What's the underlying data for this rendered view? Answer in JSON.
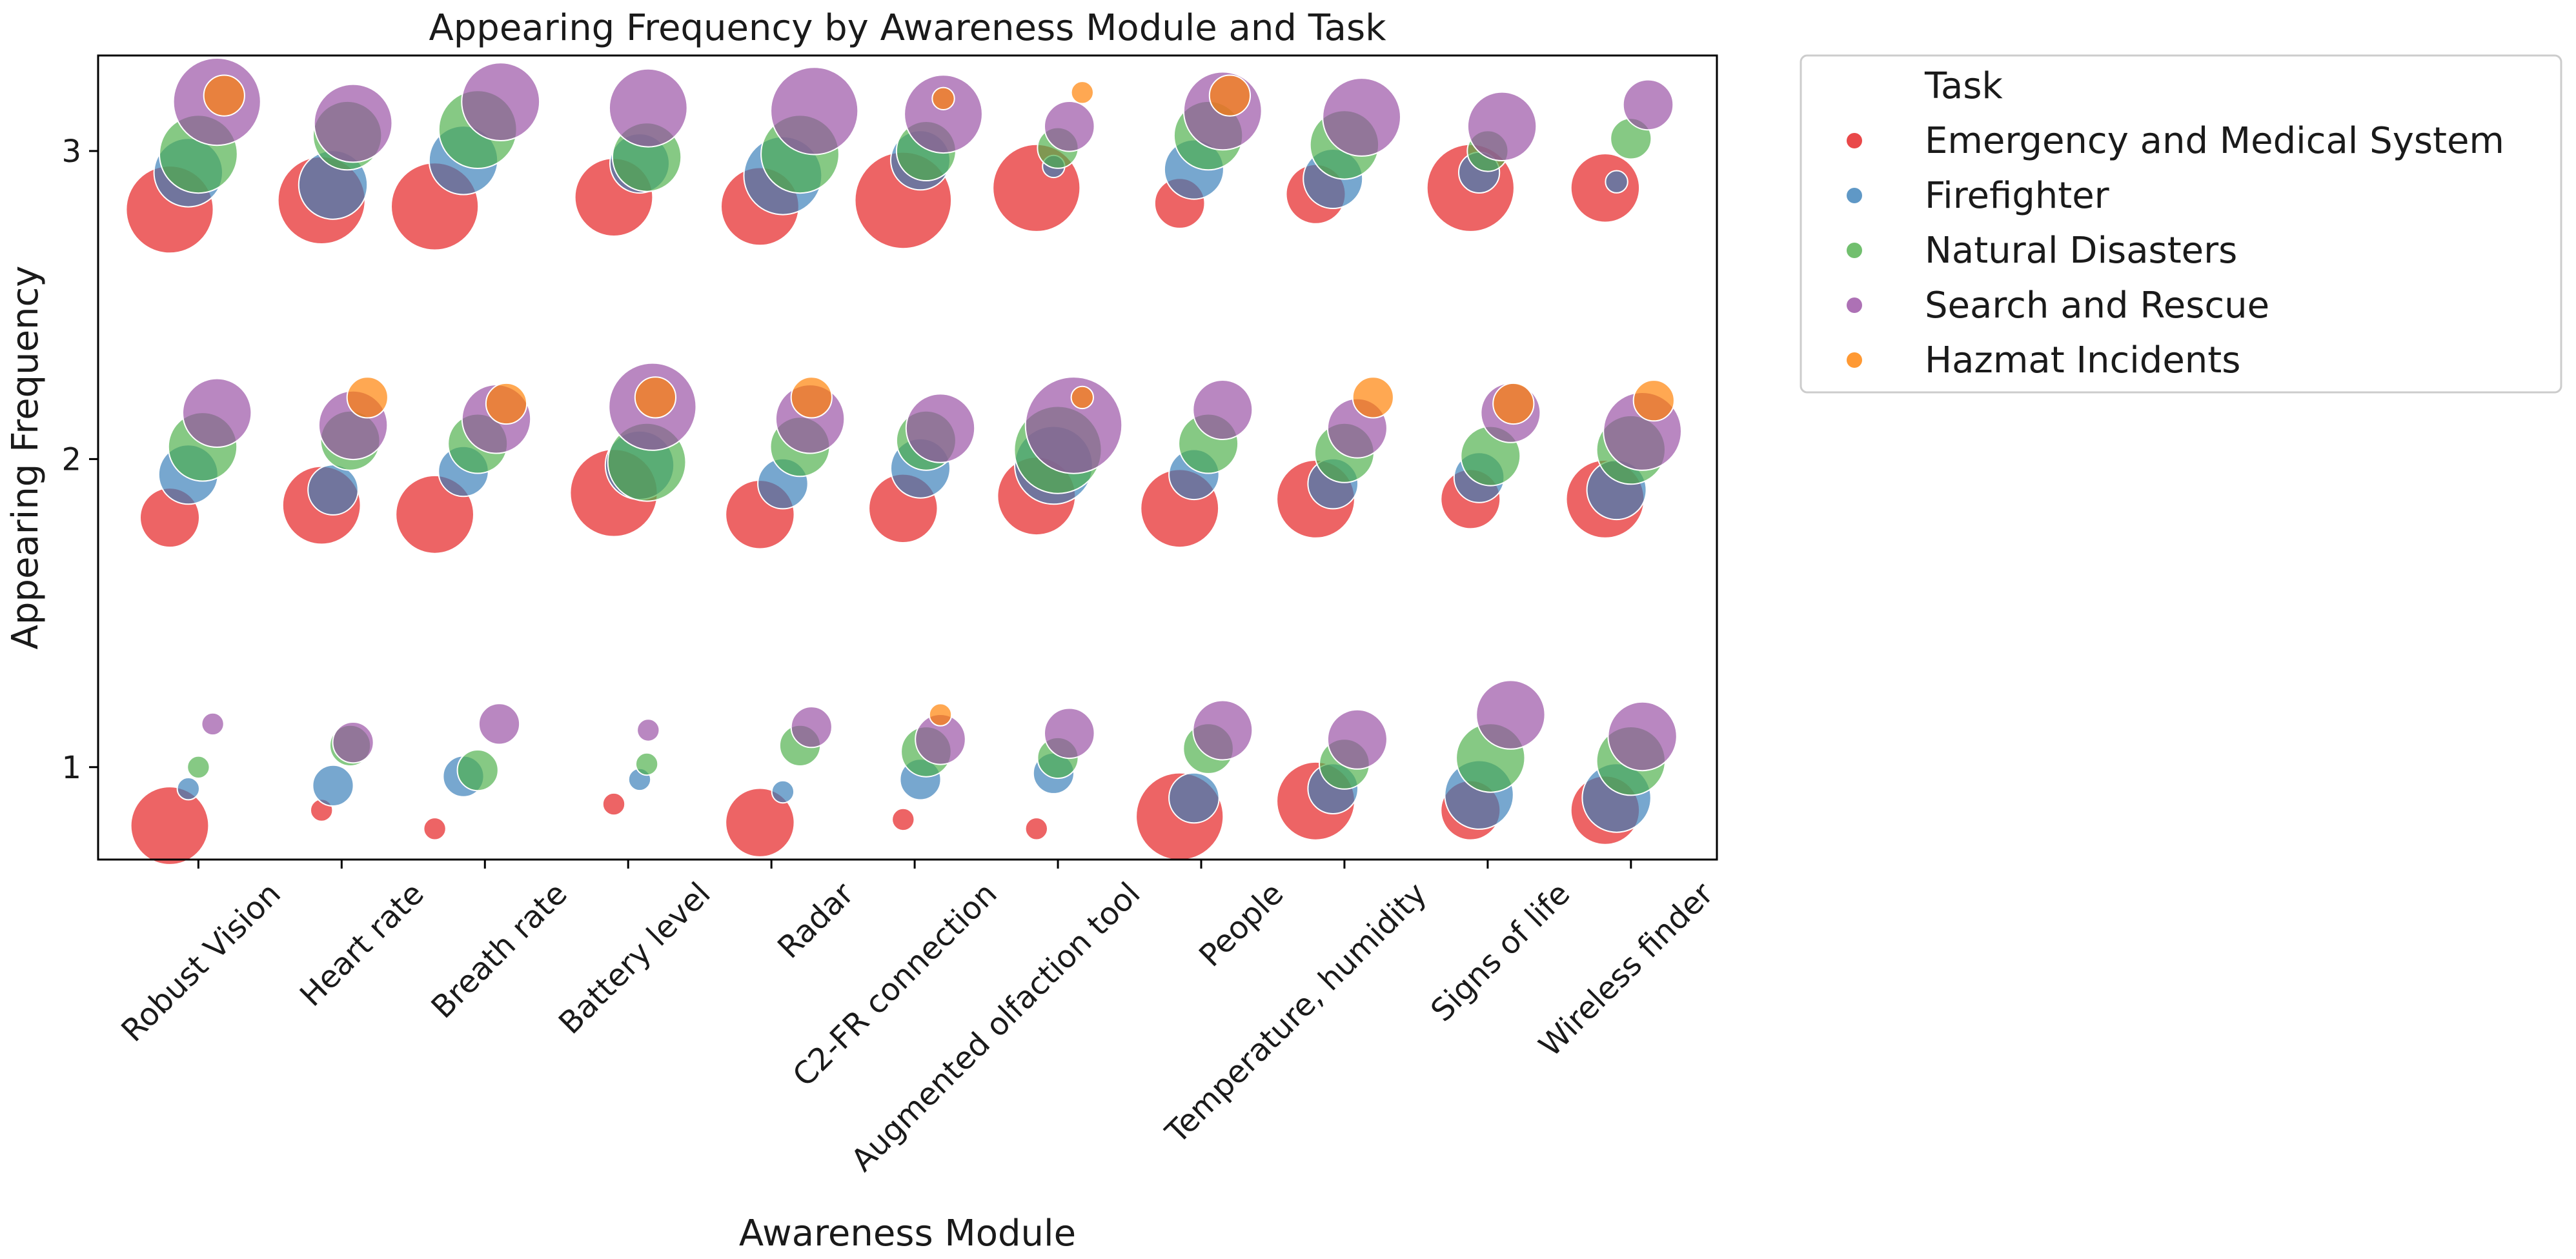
{
  "chart_data": {
    "type": "scatter",
    "title": "Appearing Frequency by Awareness Module and Task",
    "xlabel": "Awareness Module",
    "ylabel": "Appearing Frequency",
    "categories": [
      "Robust Vision",
      "Heart rate",
      "Breath rate",
      "Battery level",
      "Radar",
      "C2-FR connection",
      "Augmented olfaction tool",
      "People",
      "Temperature, humidity",
      "Signs of life",
      "Wireless finder"
    ],
    "yticks": [
      1,
      2,
      3
    ],
    "ylim": [
      0.7,
      3.31
    ],
    "grid": false,
    "legend": {
      "title": "Task",
      "position": "outside-right"
    },
    "size_encoding": "relative count",
    "series": [
      {
        "name": "Emergency and Medical System",
        "color": "#e41a1c",
        "points": [
          {
            "cat": 0,
            "dx": -0.2,
            "y": 0.81,
            "s": 7
          },
          {
            "cat": 0,
            "dx": -0.2,
            "y": 2.81,
            "s": 8
          },
          {
            "cat": 0,
            "dx": -0.2,
            "y": 1.81,
            "s": 5
          },
          {
            "cat": 1,
            "dx": -0.14,
            "y": 0.86,
            "s": 1
          },
          {
            "cat": 1,
            "dx": -0.14,
            "y": 1.85,
            "s": 7
          },
          {
            "cat": 1,
            "dx": -0.14,
            "y": 2.84,
            "s": 8
          },
          {
            "cat": 2,
            "dx": -0.35,
            "y": 0.8,
            "s": 1
          },
          {
            "cat": 2,
            "dx": -0.35,
            "y": 1.82,
            "s": 7
          },
          {
            "cat": 2,
            "dx": -0.35,
            "y": 2.82,
            "s": 8
          },
          {
            "cat": 3,
            "dx": -0.1,
            "y": 0.88,
            "s": 1
          },
          {
            "cat": 3,
            "dx": -0.1,
            "y": 1.89,
            "s": 8
          },
          {
            "cat": 3,
            "dx": -0.1,
            "y": 2.85,
            "s": 7
          },
          {
            "cat": 4,
            "dx": -0.08,
            "y": 0.82,
            "s": 6
          },
          {
            "cat": 4,
            "dx": -0.08,
            "y": 1.82,
            "s": 6
          },
          {
            "cat": 4,
            "dx": -0.08,
            "y": 2.82,
            "s": 7
          },
          {
            "cat": 5,
            "dx": -0.08,
            "y": 0.83,
            "s": 1
          },
          {
            "cat": 5,
            "dx": -0.08,
            "y": 1.84,
            "s": 6
          },
          {
            "cat": 5,
            "dx": -0.08,
            "y": 2.84,
            "s": 9
          },
          {
            "cat": 6,
            "dx": -0.15,
            "y": 0.8,
            "s": 1
          },
          {
            "cat": 6,
            "dx": -0.15,
            "y": 1.88,
            "s": 7
          },
          {
            "cat": 6,
            "dx": -0.15,
            "y": 2.88,
            "s": 8
          },
          {
            "cat": 7,
            "dx": -0.15,
            "y": 0.84,
            "s": 8
          },
          {
            "cat": 7,
            "dx": -0.15,
            "y": 1.84,
            "s": 7
          },
          {
            "cat": 7,
            "dx": -0.15,
            "y": 2.83,
            "s": 4
          },
          {
            "cat": 8,
            "dx": -0.2,
            "y": 0.89,
            "s": 7
          },
          {
            "cat": 8,
            "dx": -0.2,
            "y": 1.87,
            "s": 7
          },
          {
            "cat": 8,
            "dx": -0.2,
            "y": 2.86,
            "s": 5
          },
          {
            "cat": 9,
            "dx": -0.12,
            "y": 0.86,
            "s": 5
          },
          {
            "cat": 9,
            "dx": -0.12,
            "y": 1.87,
            "s": 5
          },
          {
            "cat": 9,
            "dx": -0.12,
            "y": 2.88,
            "s": 8
          },
          {
            "cat": 10,
            "dx": -0.18,
            "y": 0.86,
            "s": 6
          },
          {
            "cat": 10,
            "dx": -0.18,
            "y": 1.87,
            "s": 7
          },
          {
            "cat": 10,
            "dx": -0.18,
            "y": 2.88,
            "s": 6
          }
        ]
      },
      {
        "name": "Firefighter",
        "color": "#377eb8",
        "points": [
          {
            "cat": 0,
            "dx": -0.07,
            "y": 0.93,
            "s": 1
          },
          {
            "cat": 0,
            "dx": -0.07,
            "y": 1.95,
            "s": 5
          },
          {
            "cat": 0,
            "dx": -0.07,
            "y": 2.93,
            "s": 6
          },
          {
            "cat": 1,
            "dx": -0.06,
            "y": 0.94,
            "s": 3
          },
          {
            "cat": 1,
            "dx": -0.06,
            "y": 1.9,
            "s": 4
          },
          {
            "cat": 1,
            "dx": -0.06,
            "y": 2.89,
            "s": 6
          },
          {
            "cat": 2,
            "dx": -0.15,
            "y": 0.97,
            "s": 3
          },
          {
            "cat": 2,
            "dx": -0.15,
            "y": 1.96,
            "s": 4
          },
          {
            "cat": 2,
            "dx": -0.15,
            "y": 2.97,
            "s": 6
          },
          {
            "cat": 3,
            "dx": 0.08,
            "y": 0.96,
            "s": 1
          },
          {
            "cat": 3,
            "dx": 0.08,
            "y": 1.98,
            "s": 6
          },
          {
            "cat": 3,
            "dx": 0.08,
            "y": 2.96,
            "s": 5
          },
          {
            "cat": 4,
            "dx": 0.08,
            "y": 0.92,
            "s": 1
          },
          {
            "cat": 4,
            "dx": 0.08,
            "y": 1.92,
            "s": 4
          },
          {
            "cat": 4,
            "dx": 0.08,
            "y": 2.92,
            "s": 7
          },
          {
            "cat": 5,
            "dx": 0.04,
            "y": 0.96,
            "s": 3
          },
          {
            "cat": 5,
            "dx": 0.04,
            "y": 1.97,
            "s": 5
          },
          {
            "cat": 5,
            "dx": 0.04,
            "y": 2.97,
            "s": 5
          },
          {
            "cat": 6,
            "dx": -0.03,
            "y": 0.98,
            "s": 3
          },
          {
            "cat": 6,
            "dx": -0.03,
            "y": 1.98,
            "s": 7
          },
          {
            "cat": 6,
            "dx": -0.03,
            "y": 2.95,
            "s": 1
          },
          {
            "cat": 7,
            "dx": -0.05,
            "y": 0.9,
            "s": 4
          },
          {
            "cat": 7,
            "dx": -0.05,
            "y": 1.95,
            "s": 4
          },
          {
            "cat": 7,
            "dx": -0.05,
            "y": 2.94,
            "s": 5
          },
          {
            "cat": 8,
            "dx": -0.08,
            "y": 0.93,
            "s": 4
          },
          {
            "cat": 8,
            "dx": -0.08,
            "y": 1.92,
            "s": 4
          },
          {
            "cat": 8,
            "dx": -0.08,
            "y": 2.91,
            "s": 5
          },
          {
            "cat": 9,
            "dx": -0.06,
            "y": 0.91,
            "s": 6
          },
          {
            "cat": 9,
            "dx": -0.06,
            "y": 1.94,
            "s": 4
          },
          {
            "cat": 9,
            "dx": -0.06,
            "y": 2.93,
            "s": 3
          },
          {
            "cat": 10,
            "dx": -0.1,
            "y": 0.9,
            "s": 6
          },
          {
            "cat": 10,
            "dx": -0.1,
            "y": 1.9,
            "s": 5
          },
          {
            "cat": 10,
            "dx": -0.1,
            "y": 2.9,
            "s": 1
          }
        ]
      },
      {
        "name": "Natural Disasters",
        "color": "#4daf4a",
        "points": [
          {
            "cat": 0,
            "dx": 0.0,
            "y": 1.0,
            "s": 1
          },
          {
            "cat": 0,
            "dx": 0.03,
            "y": 2.04,
            "s": 6
          },
          {
            "cat": 0,
            "dx": 0.0,
            "y": 2.99,
            "s": 7
          },
          {
            "cat": 1,
            "dx": 0.06,
            "y": 1.07,
            "s": 3
          },
          {
            "cat": 1,
            "dx": 0.06,
            "y": 2.06,
            "s": 5
          },
          {
            "cat": 1,
            "dx": 0.04,
            "y": 3.05,
            "s": 6
          },
          {
            "cat": 2,
            "dx": -0.05,
            "y": 0.99,
            "s": 3
          },
          {
            "cat": 2,
            "dx": -0.05,
            "y": 2.05,
            "s": 5
          },
          {
            "cat": 2,
            "dx": -0.05,
            "y": 3.07,
            "s": 7
          },
          {
            "cat": 3,
            "dx": 0.13,
            "y": 1.01,
            "s": 1
          },
          {
            "cat": 3,
            "dx": 0.13,
            "y": 1.99,
            "s": 7
          },
          {
            "cat": 3,
            "dx": 0.13,
            "y": 2.98,
            "s": 6
          },
          {
            "cat": 4,
            "dx": 0.2,
            "y": 1.07,
            "s": 3
          },
          {
            "cat": 4,
            "dx": 0.2,
            "y": 2.04,
            "s": 5
          },
          {
            "cat": 4,
            "dx": 0.2,
            "y": 2.99,
            "s": 7
          },
          {
            "cat": 5,
            "dx": 0.08,
            "y": 1.05,
            "s": 4
          },
          {
            "cat": 5,
            "dx": 0.08,
            "y": 2.06,
            "s": 5
          },
          {
            "cat": 5,
            "dx": 0.08,
            "y": 3.0,
            "s": 5
          },
          {
            "cat": 6,
            "dx": 0.0,
            "y": 1.03,
            "s": 3
          },
          {
            "cat": 6,
            "dx": 0.0,
            "y": 2.03,
            "s": 8
          },
          {
            "cat": 6,
            "dx": 0.0,
            "y": 3.01,
            "s": 3
          },
          {
            "cat": 7,
            "dx": 0.05,
            "y": 1.06,
            "s": 4
          },
          {
            "cat": 7,
            "dx": 0.05,
            "y": 2.05,
            "s": 5
          },
          {
            "cat": 7,
            "dx": 0.05,
            "y": 3.05,
            "s": 6
          },
          {
            "cat": 8,
            "dx": 0.0,
            "y": 1.01,
            "s": 4
          },
          {
            "cat": 8,
            "dx": 0.0,
            "y": 2.02,
            "s": 5
          },
          {
            "cat": 8,
            "dx": 0.0,
            "y": 3.02,
            "s": 6
          },
          {
            "cat": 9,
            "dx": 0.02,
            "y": 1.03,
            "s": 6
          },
          {
            "cat": 9,
            "dx": 0.02,
            "y": 2.01,
            "s": 5
          },
          {
            "cat": 9,
            "dx": 0.0,
            "y": 3.0,
            "s": 3
          },
          {
            "cat": 10,
            "dx": 0.0,
            "y": 1.02,
            "s": 6
          },
          {
            "cat": 10,
            "dx": 0.0,
            "y": 2.03,
            "s": 6
          },
          {
            "cat": 10,
            "dx": 0.0,
            "y": 3.04,
            "s": 3
          }
        ]
      },
      {
        "name": "Search and Rescue",
        "color": "#984ea3",
        "points": [
          {
            "cat": 0,
            "dx": 0.1,
            "y": 1.14,
            "s": 1
          },
          {
            "cat": 0,
            "dx": 0.13,
            "y": 2.15,
            "s": 6
          },
          {
            "cat": 0,
            "dx": 0.13,
            "y": 3.16,
            "s": 8
          },
          {
            "cat": 1,
            "dx": 0.08,
            "y": 1.08,
            "s": 3
          },
          {
            "cat": 1,
            "dx": 0.08,
            "y": 2.11,
            "s": 6
          },
          {
            "cat": 1,
            "dx": 0.08,
            "y": 3.09,
            "s": 7
          },
          {
            "cat": 2,
            "dx": 0.1,
            "y": 1.14,
            "s": 3
          },
          {
            "cat": 2,
            "dx": 0.08,
            "y": 2.13,
            "s": 6
          },
          {
            "cat": 2,
            "dx": 0.11,
            "y": 3.16,
            "s": 7
          },
          {
            "cat": 3,
            "dx": 0.14,
            "y": 1.12,
            "s": 1
          },
          {
            "cat": 3,
            "dx": 0.17,
            "y": 2.17,
            "s": 8
          },
          {
            "cat": 3,
            "dx": 0.14,
            "y": 3.14,
            "s": 7
          },
          {
            "cat": 4,
            "dx": 0.28,
            "y": 1.13,
            "s": 3
          },
          {
            "cat": 4,
            "dx": 0.27,
            "y": 2.13,
            "s": 6
          },
          {
            "cat": 4,
            "dx": 0.3,
            "y": 3.13,
            "s": 8
          },
          {
            "cat": 5,
            "dx": 0.18,
            "y": 1.09,
            "s": 4
          },
          {
            "cat": 5,
            "dx": 0.18,
            "y": 2.1,
            "s": 6
          },
          {
            "cat": 5,
            "dx": 0.2,
            "y": 3.12,
            "s": 7
          },
          {
            "cat": 6,
            "dx": 0.08,
            "y": 1.11,
            "s": 4
          },
          {
            "cat": 6,
            "dx": 0.11,
            "y": 2.11,
            "s": 9
          },
          {
            "cat": 6,
            "dx": 0.08,
            "y": 3.08,
            "s": 4
          },
          {
            "cat": 7,
            "dx": 0.15,
            "y": 1.12,
            "s": 5
          },
          {
            "cat": 7,
            "dx": 0.15,
            "y": 2.16,
            "s": 5
          },
          {
            "cat": 7,
            "dx": 0.15,
            "y": 3.13,
            "s": 7
          },
          {
            "cat": 8,
            "dx": 0.09,
            "y": 1.09,
            "s": 5
          },
          {
            "cat": 8,
            "dx": 0.09,
            "y": 2.1,
            "s": 5
          },
          {
            "cat": 8,
            "dx": 0.12,
            "y": 3.11,
            "s": 7
          },
          {
            "cat": 9,
            "dx": 0.16,
            "y": 1.17,
            "s": 6
          },
          {
            "cat": 9,
            "dx": 0.16,
            "y": 2.15,
            "s": 5
          },
          {
            "cat": 9,
            "dx": 0.1,
            "y": 3.08,
            "s": 6
          },
          {
            "cat": 10,
            "dx": 0.08,
            "y": 1.1,
            "s": 6
          },
          {
            "cat": 10,
            "dx": 0.08,
            "y": 2.09,
            "s": 7
          },
          {
            "cat": 10,
            "dx": 0.12,
            "y": 3.15,
            "s": 4
          }
        ]
      },
      {
        "name": "Hazmat Incidents",
        "color": "#ff7f00",
        "points": [
          {
            "cat": 0,
            "dx": 0.18,
            "y": 3.18,
            "s": 3
          },
          {
            "cat": 1,
            "dx": 0.18,
            "y": 2.2,
            "s": 3
          },
          {
            "cat": 2,
            "dx": 0.15,
            "y": 2.18,
            "s": 3
          },
          {
            "cat": 3,
            "dx": 0.19,
            "y": 2.2,
            "s": 3
          },
          {
            "cat": 4,
            "dx": 0.28,
            "y": 2.2,
            "s": 3
          },
          {
            "cat": 5,
            "dx": 0.18,
            "y": 1.17,
            "s": 1
          },
          {
            "cat": 5,
            "dx": 0.2,
            "y": 3.17,
            "s": 1
          },
          {
            "cat": 6,
            "dx": 0.17,
            "y": 2.2,
            "s": 1
          },
          {
            "cat": 6,
            "dx": 0.17,
            "y": 3.19,
            "s": 1
          },
          {
            "cat": 7,
            "dx": 0.2,
            "y": 3.18,
            "s": 3
          },
          {
            "cat": 8,
            "dx": 0.2,
            "y": 2.2,
            "s": 3
          },
          {
            "cat": 9,
            "dx": 0.18,
            "y": 2.18,
            "s": 3
          },
          {
            "cat": 10,
            "dx": 0.16,
            "y": 2.19,
            "s": 3
          }
        ]
      }
    ]
  }
}
